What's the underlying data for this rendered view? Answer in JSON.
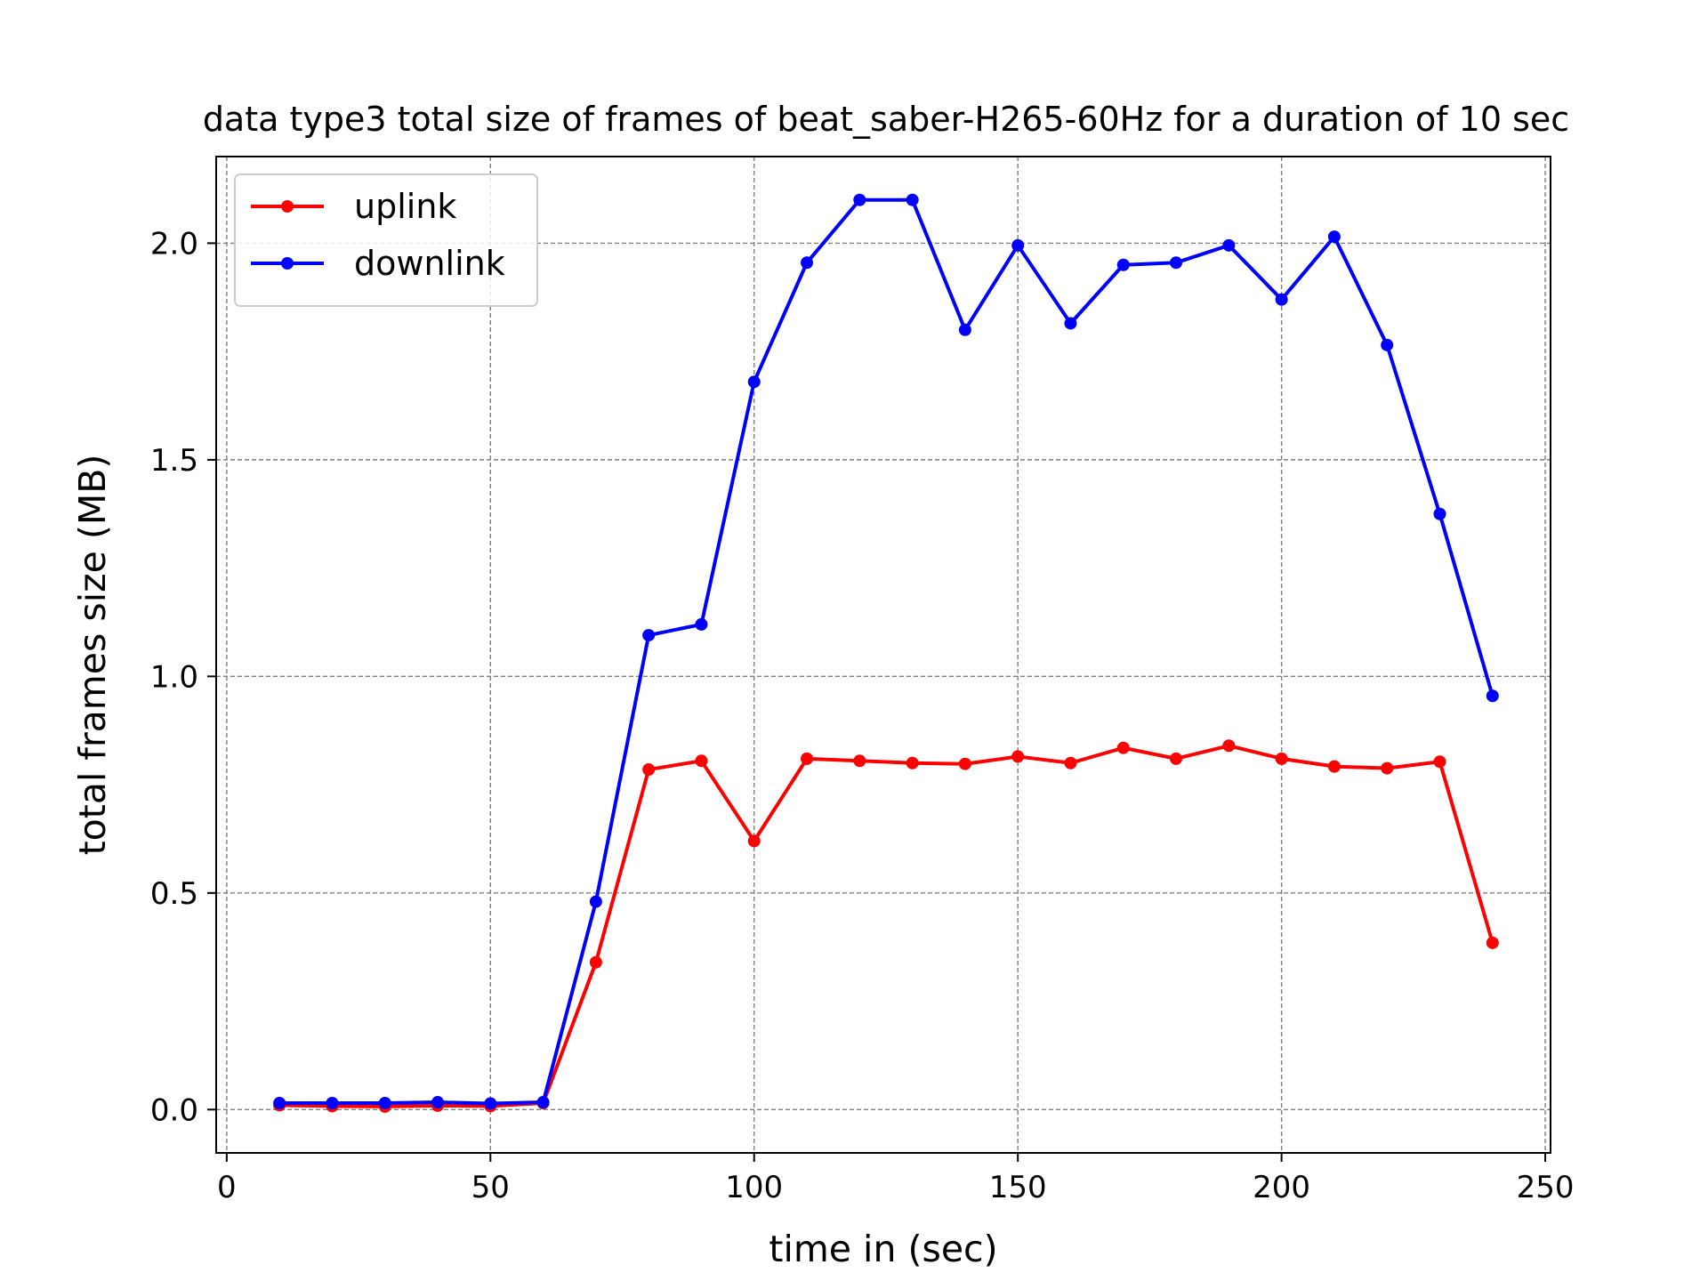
{
  "chart_data": {
    "type": "line",
    "title": "data type3 total size of frames of beat_saber-H265-60Hz for a duration of 10 sec",
    "xlabel": "time in (sec)",
    "ylabel": "total frames size (MB)",
    "xlim": [
      -2,
      251
    ],
    "ylim": [
      -0.1,
      2.2
    ],
    "xticks": [
      0,
      50,
      100,
      150,
      200,
      250
    ],
    "xtick_labels": [
      "0",
      "50",
      "100",
      "150",
      "200",
      "250"
    ],
    "yticks": [
      0.0,
      0.5,
      1.0,
      1.5,
      2.0
    ],
    "ytick_labels": [
      "0.0",
      "0.5",
      "1.0",
      "1.5",
      "2.0"
    ],
    "grid": true,
    "legend_position": "top-left",
    "x": [
      10,
      20,
      30,
      40,
      50,
      60,
      70,
      80,
      90,
      100,
      110,
      120,
      130,
      140,
      150,
      160,
      170,
      180,
      190,
      200,
      210,
      220,
      230,
      240
    ],
    "series": [
      {
        "name": "uplink",
        "color": "#ff0000",
        "values": [
          0.01,
          0.008,
          0.007,
          0.009,
          0.008,
          0.015,
          0.34,
          0.785,
          0.805,
          0.62,
          0.81,
          0.805,
          0.8,
          0.798,
          0.815,
          0.8,
          0.835,
          0.81,
          0.84,
          0.81,
          0.792,
          0.788,
          0.803,
          0.385
        ]
      },
      {
        "name": "downlink",
        "color": "#0000ff",
        "values": [
          0.015,
          0.015,
          0.015,
          0.017,
          0.014,
          0.017,
          0.48,
          1.095,
          1.12,
          1.68,
          1.955,
          2.1,
          2.1,
          1.8,
          1.995,
          1.815,
          1.95,
          1.955,
          1.995,
          1.87,
          2.015,
          1.765,
          1.375,
          0.955
        ]
      }
    ]
  }
}
